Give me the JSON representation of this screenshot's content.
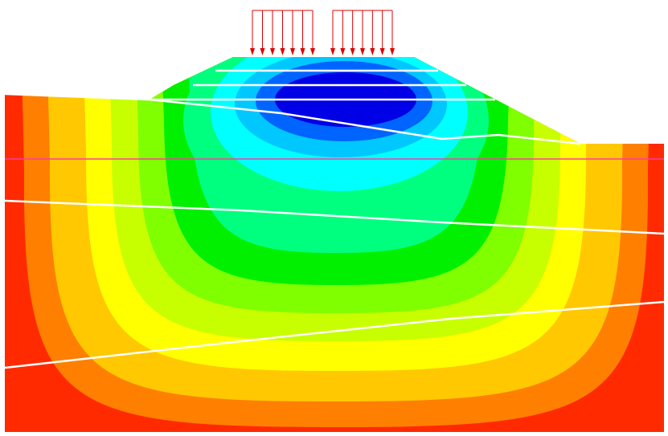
{
  "diagram": {
    "type": "soil-stress-contour",
    "background": "#ffffff",
    "contour_palette": [
      "#ff2a00",
      "#ff7f00",
      "#ffc800",
      "#ffff00",
      "#c8ff00",
      "#7fff00",
      "#00f000",
      "#00ff7f",
      "#00ffff",
      "#00c8ff",
      "#0064ff",
      "#0000e6"
    ],
    "load_arrows": {
      "color": "#e00000",
      "groups": 2,
      "arrows_per_group": 7
    },
    "boundary_color": "#ffffff",
    "water_table_color": "#ff3ca0"
  }
}
